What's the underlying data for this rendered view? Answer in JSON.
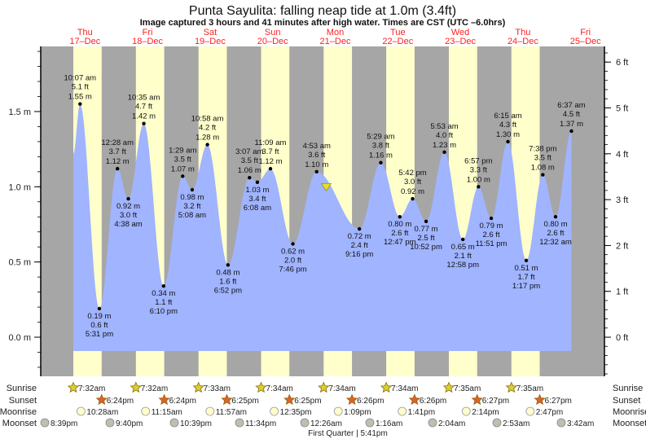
{
  "title": "Punta Sayulita: falling  neap tide at 1.0m (3.4ft)",
  "subtitle": "Image captured 3 hours and 41 minutes after high water. Times are CST (UTC –6.0hrs)",
  "colors": {
    "night": "#a6a6a6",
    "day": "#ffffcc",
    "water": "#a0b4ff",
    "day_label": "#ff2020",
    "sunrise": "#d8d030",
    "sunset": "#e0602a",
    "moonrise": "#ffffcc",
    "moonset": "#c0beb0",
    "current_marker": "#e8e020"
  },
  "chart_data": {
    "type": "area",
    "title": "Punta Sayulita: falling  neap tide at 1.0m (3.4ft)",
    "days": [
      {
        "weekday": "Thu",
        "date": "17–Dec"
      },
      {
        "weekday": "Fri",
        "date": "18–Dec"
      },
      {
        "weekday": "Sat",
        "date": "19–Dec"
      },
      {
        "weekday": "Sun",
        "date": "20–Dec"
      },
      {
        "weekday": "Mon",
        "date": "21–Dec"
      },
      {
        "weekday": "Tue",
        "date": "22–Dec"
      },
      {
        "weekday": "Wed",
        "date": "23–Dec"
      },
      {
        "weekday": "Thu",
        "date": "24–Dec"
      },
      {
        "weekday": "Fri",
        "date": "25–Dec"
      }
    ],
    "y_left": {
      "unit": "m",
      "ticks": [
        "0.0 m",
        "0.5 m",
        "1.0 m",
        "1.5 m"
      ],
      "tick_values": [
        0,
        0.5,
        1.0,
        1.5
      ],
      "range": [
        -0.26,
        1.93
      ]
    },
    "y_right": {
      "unit": "ft",
      "ticks": [
        "0 ft",
        "1 ft",
        "2 ft",
        "3 ft",
        "4 ft",
        "5 ft",
        "6 ft"
      ],
      "tick_values": [
        0,
        1,
        2,
        3,
        4,
        5,
        6
      ]
    },
    "extremes": [
      {
        "day": 0,
        "time": "10:07 am",
        "ft": "5.1 ft",
        "m": "1.55 m",
        "value": 1.55,
        "type": "high"
      },
      {
        "day": 0,
        "time": "5:31 pm",
        "ft": "0.6 ft",
        "m": "0.19 m",
        "value": 0.19,
        "type": "low"
      },
      {
        "day": 1,
        "time": "12:28 am",
        "ft": "3.7 ft",
        "m": "1.12 m",
        "value": 1.12,
        "type": "high"
      },
      {
        "day": 1,
        "time": "4:38 am",
        "ft": "3.0 ft",
        "m": "0.92 m",
        "value": 0.92,
        "type": "low"
      },
      {
        "day": 1,
        "time": "10:35 am",
        "ft": "4.7 ft",
        "m": "1.42 m",
        "value": 1.42,
        "type": "high"
      },
      {
        "day": 1,
        "time": "6:10 pm",
        "ft": "1.1 ft",
        "m": "0.34 m",
        "value": 0.34,
        "type": "low"
      },
      {
        "day": 2,
        "time": "1:29 am",
        "ft": "3.5 ft",
        "m": "1.07 m",
        "value": 1.07,
        "type": "high"
      },
      {
        "day": 2,
        "time": "5:08 am",
        "ft": "3.2 ft",
        "m": "0.98 m",
        "value": 0.98,
        "type": "low"
      },
      {
        "day": 2,
        "time": "10:58 am",
        "ft": "4.2 ft",
        "m": "1.28 m",
        "value": 1.28,
        "type": "high"
      },
      {
        "day": 2,
        "time": "6:52 pm",
        "ft": "1.6 ft",
        "m": "0.48 m",
        "value": 0.48,
        "type": "low"
      },
      {
        "day": 3,
        "time": "3:07 am",
        "ft": "3.5 ft",
        "m": "1.06 m",
        "value": 1.06,
        "type": "high"
      },
      {
        "day": 3,
        "time": "6:08 am",
        "ft": "3.4 ft",
        "m": "1.03 m",
        "value": 1.03,
        "type": "low"
      },
      {
        "day": 3,
        "time": "11:09 am",
        "ft": "3.7 ft",
        "m": "1.12 m",
        "value": 1.12,
        "type": "high"
      },
      {
        "day": 3,
        "time": "7:46 pm",
        "ft": "2.0 ft",
        "m": "0.62 m",
        "value": 0.62,
        "type": "low"
      },
      {
        "day": 4,
        "time": "4:53 am",
        "ft": "3.6 ft",
        "m": "1.10 m",
        "value": 1.1,
        "type": "high"
      },
      {
        "day": 4,
        "time": "9:16 pm",
        "ft": "2.4 ft",
        "m": "0.72 m",
        "value": 0.72,
        "type": "low"
      },
      {
        "day": 5,
        "time": "5:29 am",
        "ft": "3.8 ft",
        "m": "1.16 m",
        "value": 1.16,
        "type": "high"
      },
      {
        "day": 5,
        "time": "12:47 pm",
        "ft": "2.6 ft",
        "m": "0.80 m",
        "value": 0.8,
        "type": "low"
      },
      {
        "day": 5,
        "time": "5:42 pm",
        "ft": "3.0 ft",
        "m": "0.92 m",
        "value": 0.92,
        "type": "high"
      },
      {
        "day": 5,
        "time": "10:52 pm",
        "ft": "2.5 ft",
        "m": "0.77 m",
        "value": 0.77,
        "type": "low"
      },
      {
        "day": 6,
        "time": "5:53 am",
        "ft": "4.0 ft",
        "m": "1.23 m",
        "value": 1.23,
        "type": "high"
      },
      {
        "day": 6,
        "time": "12:58 pm",
        "ft": "2.1 ft",
        "m": "0.65 m",
        "value": 0.65,
        "type": "low"
      },
      {
        "day": 6,
        "time": "6:57 pm",
        "ft": "3.3 ft",
        "m": "1.00 m",
        "value": 1.0,
        "type": "high"
      },
      {
        "day": 6,
        "time": "11:51 pm",
        "ft": "2.6 ft",
        "m": "0.79 m",
        "value": 0.79,
        "type": "low"
      },
      {
        "day": 7,
        "time": "6:15 am",
        "ft": "4.3 ft",
        "m": "1.30 m",
        "value": 1.3,
        "type": "high"
      },
      {
        "day": 7,
        "time": "1:17 pm",
        "ft": "1.7 ft",
        "m": "0.51 m",
        "value": 0.51,
        "type": "low"
      },
      {
        "day": 7,
        "time": "7:38 pm",
        "ft": "3.5 ft",
        "m": "1.08 m",
        "value": 1.08,
        "type": "high"
      },
      {
        "day": 8,
        "time": "12:32 am",
        "ft": "2.6 ft",
        "m": "0.80 m",
        "value": 0.8,
        "type": "low"
      },
      {
        "day": 8,
        "time": "6:37 am",
        "ft": "4.5 ft",
        "m": "1.37 m",
        "value": 1.37,
        "type": "high"
      }
    ],
    "current": {
      "day": 4,
      "time": "8:34 am",
      "value": 1.0
    },
    "grid": false,
    "legend": "none"
  },
  "astro": {
    "labels": {
      "sunrise": "Sunrise",
      "sunset": "Sunset",
      "moonrise": "Moonrise",
      "moonset": "Moonset"
    },
    "sunrise": [
      "7:32am",
      "7:32am",
      "7:33am",
      "7:34am",
      "7:34am",
      "7:34am",
      "7:35am",
      "7:35am"
    ],
    "sunset": [
      "6:24pm",
      "6:24pm",
      "6:25pm",
      "6:25pm",
      "6:26pm",
      "6:26pm",
      "6:27pm",
      "6:27pm"
    ],
    "moonrise": [
      "10:28am",
      "11:15am",
      "11:57am",
      "12:35pm",
      "1:09pm",
      "1:41pm",
      "2:14pm",
      "2:47pm"
    ],
    "moonset": [
      "8:39pm",
      "9:40pm",
      "10:39pm",
      "11:34pm",
      "12:26am",
      "1:16am",
      "2:04am",
      "2:53am",
      "3:42am"
    ],
    "moon_phase": "First Quarter | 5:41pm"
  }
}
